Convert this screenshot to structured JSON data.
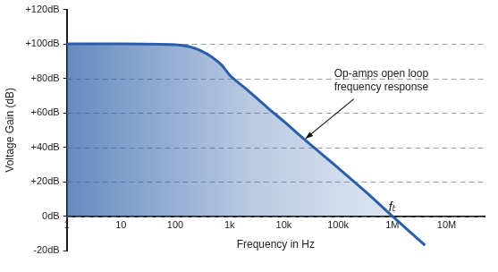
{
  "chart_data": {
    "type": "line",
    "log": "x",
    "x_label": "Frequency in Hz",
    "y_label": "Voltage Gain (dB)",
    "x": [
      1,
      10,
      100,
      300,
      700,
      1000,
      2000,
      5000,
      10000,
      23000,
      100000,
      300000,
      1000000,
      4000000
    ],
    "values": [
      100,
      100,
      99.5,
      96,
      88,
      82,
      74,
      63,
      55,
      45,
      28,
      15,
      0,
      -17
    ],
    "color": "#2b5ea7",
    "xlim": [
      1,
      50000000
    ],
    "ylim": [
      -20,
      120
    ],
    "xticks": [
      1,
      10,
      100,
      {
        "value": 1000,
        "label": "1k"
      },
      {
        "value": 10000,
        "label": "10k"
      },
      {
        "value": 100000,
        "label": "100k"
      },
      {
        "value": 1000000,
        "label": "1M"
      },
      {
        "value": 10000000,
        "label": "10M"
      }
    ],
    "yticks": [
      {
        "value": -20,
        "label": "-20dB"
      },
      {
        "value": 0,
        "label": "0dB"
      },
      {
        "value": 20,
        "label": "+20dB"
      },
      {
        "value": 40,
        "label": "+40dB"
      },
      {
        "value": 60,
        "label": "+60dB"
      },
      {
        "value": 80,
        "label": "+80dB"
      },
      {
        "value": 100,
        "label": "+100dB"
      },
      {
        "value": 120,
        "label": "+120dB"
      }
    ],
    "grid": true,
    "annotations": [
      {
        "text": [
          "Op-amps open loop",
          "frequency response"
        ]
      },
      {
        "text": "fₜ"
      }
    ]
  }
}
